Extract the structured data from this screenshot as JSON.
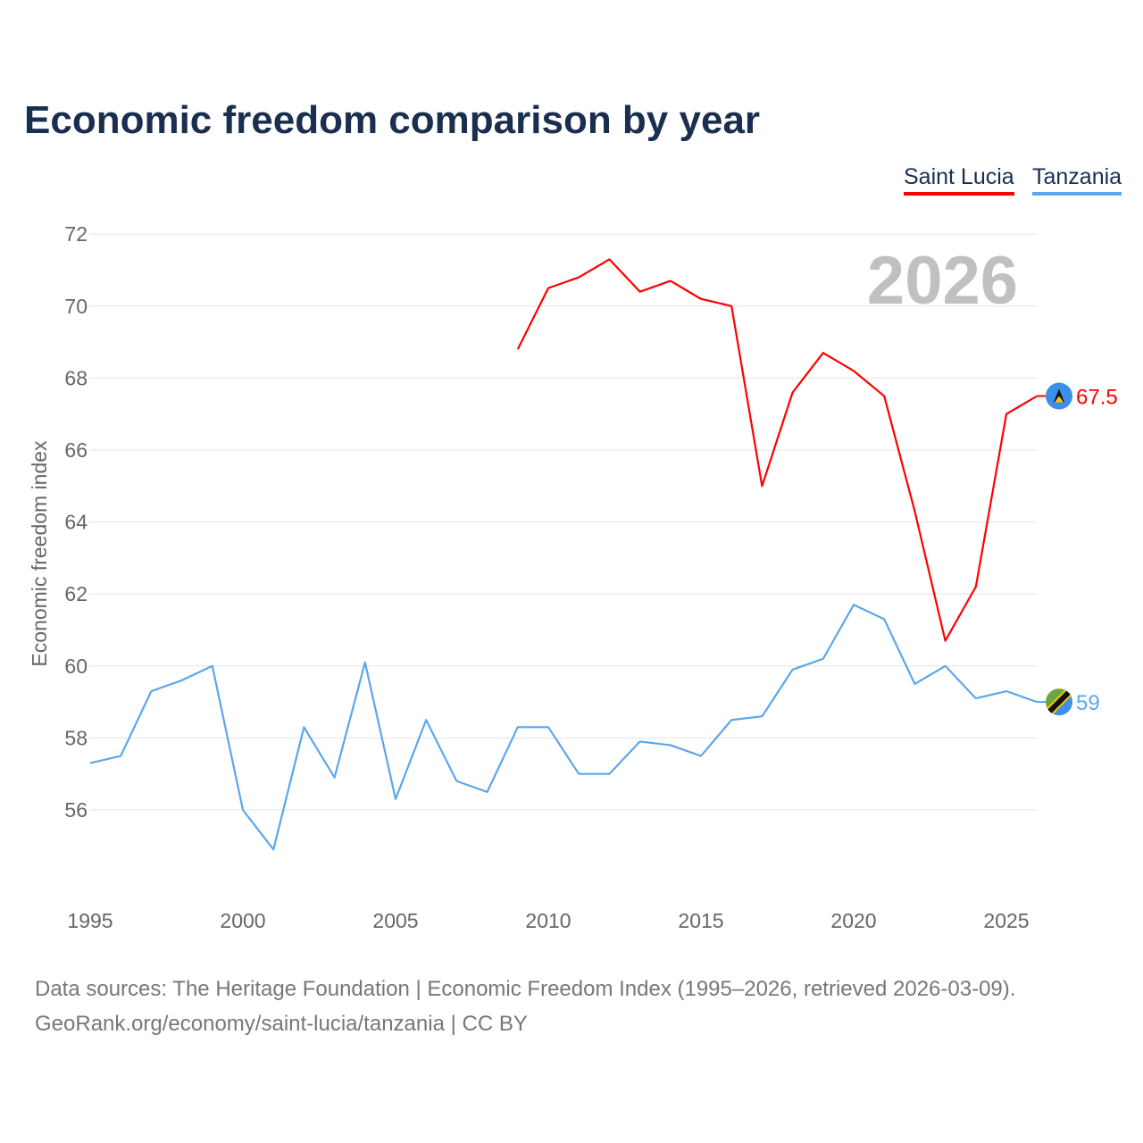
{
  "chart_data": {
    "type": "line",
    "title": "Economic freedom comparison by year",
    "xlabel": "",
    "ylabel": "Economic freedom index",
    "xlim": [
      1995,
      2026
    ],
    "ylim": [
      54,
      72.5
    ],
    "yticks": [
      56,
      58,
      60,
      62,
      64,
      66,
      68,
      70,
      72
    ],
    "xticks": [
      1995,
      2000,
      2005,
      2010,
      2015,
      2020,
      2025
    ],
    "grid": true,
    "legend_position": "top-right",
    "watermark_year": "2026",
    "series": [
      {
        "name": "Saint Lucia",
        "color": "#ff0000",
        "end_label": "67.5",
        "flag": "saint-lucia-flag",
        "x": [
          2009,
          2010,
          2011,
          2012,
          2013,
          2014,
          2015,
          2016,
          2017,
          2018,
          2019,
          2020,
          2021,
          2022,
          2023,
          2024,
          2025,
          2026
        ],
        "values": [
          68.8,
          70.5,
          70.8,
          71.3,
          70.4,
          70.7,
          70.2,
          70.0,
          65.0,
          67.6,
          68.7,
          68.2,
          67.5,
          64.3,
          60.7,
          62.2,
          67.0,
          67.5
        ]
      },
      {
        "name": "Tanzania",
        "color": "#5ba6ee",
        "end_label": "59",
        "flag": "tanzania-flag",
        "x": [
          1995,
          1996,
          1997,
          1998,
          1999,
          2000,
          2001,
          2002,
          2003,
          2004,
          2005,
          2006,
          2007,
          2008,
          2009,
          2010,
          2011,
          2012,
          2013,
          2014,
          2015,
          2016,
          2017,
          2018,
          2019,
          2020,
          2021,
          2022,
          2023,
          2024,
          2025,
          2026
        ],
        "values": [
          57.3,
          57.5,
          59.3,
          59.6,
          60.0,
          56.0,
          54.9,
          58.3,
          56.9,
          60.1,
          56.3,
          58.5,
          56.8,
          56.5,
          58.3,
          58.3,
          57.0,
          57.0,
          57.9,
          57.8,
          57.5,
          58.5,
          58.6,
          59.9,
          60.2,
          61.7,
          61.3,
          59.5,
          60.0,
          59.1,
          59.3,
          59.0
        ]
      }
    ]
  },
  "source_line1": "Data sources: The Heritage Foundation | Economic Freedom Index (1995–2026, retrieved 2026-03-09).",
  "source_line2": "GeoRank.org/economy/saint-lucia/tanzania | CC BY"
}
